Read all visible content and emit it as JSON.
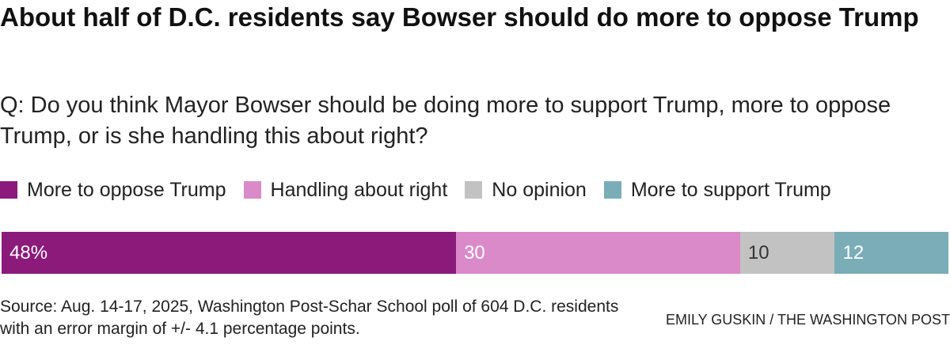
{
  "title": "About half of D.C. residents say Bowser should do more to oppose Trump",
  "subtitle": "Q: Do you think Mayor Bowser should be doing more to support Trump, more to oppose Trump, or is she handling this about right?",
  "source": "Source: Aug. 14-17, 2025, Washington Post-Schar School poll of 604 D.C. residents with an error margin of +/- 4.1 percentage points.",
  "credit": "EMILY GUSKIN / THE WASHINGTON POST",
  "chart_data": {
    "type": "bar",
    "orientation": "horizontal-stacked",
    "title": "About half of D.C. residents say Bowser should do more to oppose Trump",
    "legend_position": "top-left",
    "categories": [
      "More to oppose Trump",
      "Handling about right",
      "No opinion",
      "More to support Trump"
    ],
    "values": [
      48,
      30,
      10,
      12
    ],
    "labels": [
      "48%",
      "30",
      "10",
      "12"
    ],
    "colors": [
      "#8b1a7b",
      "#da8ac9",
      "#c2c2c2",
      "#7aadb8"
    ],
    "label_colors": [
      "#ffffff",
      "#ffffff",
      "#333333",
      "#ffffff"
    ],
    "xlim": [
      0,
      100
    ]
  }
}
